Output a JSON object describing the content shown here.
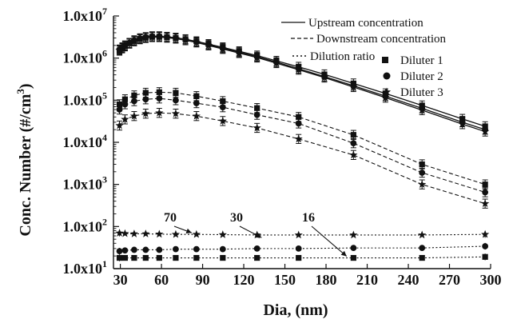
{
  "chart_data": {
    "type": "line",
    "xlabel": "Dia, (nm)",
    "ylabel": "Conc. Number (#/cm3)",
    "ylabel_base": "Conc. Number (#/cm",
    "ylabel_sup": "3",
    "ylabel_tail": ")",
    "x_ticks": [
      30,
      60,
      90,
      120,
      150,
      180,
      210,
      240,
      270,
      300
    ],
    "y_ticks": [
      10,
      100,
      1000,
      10000,
      100000,
      1000000,
      10000000
    ],
    "y_tick_labels": [
      "1.0x10",
      "1.0x10",
      "1.0x10",
      "1.0x10",
      "1.0x10",
      "1.0x10",
      "1.0x10"
    ],
    "y_tick_exps": [
      "1",
      "2",
      "3",
      "4",
      "5",
      "6",
      "7"
    ],
    "xlim": [
      25,
      300
    ],
    "ylim": [
      10,
      10000000
    ],
    "y_scale": "log",
    "grid": false,
    "legend_position": "top-right",
    "legend_lines": [
      {
        "label": "Upstream concentration",
        "style": "solid"
      },
      {
        "label": "Downstream concentration",
        "style": "dashed"
      },
      {
        "label": "Dilution ratio",
        "style": "dotted"
      }
    ],
    "legend_markers": [
      {
        "label": "Diluter 1",
        "marker": "square"
      },
      {
        "label": "Diluter 2",
        "marker": "circle"
      },
      {
        "label": "Diluter 3",
        "marker": "star"
      }
    ],
    "annotations": [
      {
        "text": "70",
        "x": 85,
        "y": 140,
        "arrow_to": [
          82,
          65
        ]
      },
      {
        "text": "30",
        "x": 130,
        "y": 140,
        "arrow_to": [
          133,
          50
        ]
      },
      {
        "text": "16",
        "x": 160,
        "y": 140,
        "arrow_to": [
          195,
          18
        ]
      }
    ],
    "series": [
      {
        "group": "upstream",
        "diluter": "Diluter 1",
        "style": "solid",
        "marker": "square",
        "x": [
          29.4,
          31.4,
          33.4,
          36.6,
          40.1,
          44.3,
          48.5,
          53.2,
          58.4,
          64.0,
          70.4,
          77.5,
          85.5,
          94.3,
          104.7,
          116.6,
          129.7,
          143.8,
          160.0,
          178.8,
          200.0,
          223.3,
          250.0,
          279.4,
          296.0
        ],
        "y": [
          1500000,
          1700000,
          1900000,
          2250000,
          2550000,
          2850000,
          3050000,
          3200000,
          3200000,
          3150000,
          3000000,
          2800000,
          2500000,
          2150000,
          1800000,
          1450000,
          1150000,
          860000,
          620000,
          410000,
          250000,
          145000,
          75000,
          36000,
          24000
        ]
      },
      {
        "group": "upstream",
        "diluter": "Diluter 2",
        "style": "solid",
        "marker": "circle",
        "x": [
          29.4,
          31.4,
          33.4,
          36.6,
          40.1,
          44.3,
          48.5,
          53.2,
          58.4,
          64.0,
          70.4,
          77.5,
          85.5,
          94.3,
          104.7,
          116.6,
          129.7,
          143.8,
          160.0,
          178.8,
          200.0,
          223.3,
          250.0,
          279.4,
          296.0
        ],
        "y": [
          1600000,
          1800000,
          2000000,
          2300000,
          2650000,
          2950000,
          3150000,
          3300000,
          3300000,
          3200000,
          3050000,
          2800000,
          2450000,
          2100000,
          1720000,
          1380000,
          1080000,
          800000,
          560000,
          365000,
          220000,
          125000,
          64000,
          30000,
          20000
        ]
      },
      {
        "group": "upstream",
        "diluter": "Diluter 3",
        "style": "solid",
        "marker": "star",
        "x": [
          29.4,
          31.4,
          33.4,
          36.6,
          40.1,
          44.3,
          48.5,
          53.2,
          58.4,
          64.0,
          70.4,
          77.5,
          85.5,
          94.3,
          104.7,
          116.6,
          129.7,
          143.8,
          160.0,
          178.8,
          200.0,
          223.3,
          250.0,
          279.4,
          296.0
        ],
        "y": [
          1550000,
          1750000,
          1950000,
          2200000,
          2500000,
          2800000,
          3000000,
          3150000,
          3150000,
          3050000,
          2900000,
          2650000,
          2350000,
          2000000,
          1650000,
          1320000,
          1030000,
          760000,
          530000,
          345000,
          205000,
          115000,
          58000,
          27000,
          18000
        ]
      },
      {
        "group": "downstream",
        "diluter": "Diluter 1",
        "style": "dashed",
        "marker": "square",
        "x": [
          29.4,
          33.4,
          40.1,
          48.5,
          58.4,
          70.4,
          85.5,
          104.7,
          129.7,
          160.0,
          200.0,
          250.0,
          296.0
        ],
        "y": [
          80000,
          105000,
          130000,
          150000,
          155000,
          150000,
          125000,
          95000,
          65000,
          40000,
          15000,
          3000,
          1000
        ]
      },
      {
        "group": "downstream",
        "diluter": "Diluter 2",
        "style": "dashed",
        "marker": "circle",
        "x": [
          29.4,
          33.4,
          40.1,
          48.5,
          58.4,
          70.4,
          85.5,
          104.7,
          129.7,
          160.0,
          200.0,
          250.0,
          296.0
        ],
        "y": [
          60000,
          80000,
          95000,
          105000,
          110000,
          100000,
          85000,
          68000,
          45000,
          28000,
          9500,
          1900,
          650
        ]
      },
      {
        "group": "downstream",
        "diluter": "Diluter 3",
        "style": "dashed",
        "marker": "star",
        "x": [
          29.4,
          33.4,
          40.1,
          48.5,
          58.4,
          70.4,
          85.5,
          104.7,
          129.7,
          160.0,
          200.0,
          250.0,
          296.0
        ],
        "y": [
          25000,
          35000,
          42000,
          48000,
          50000,
          48000,
          42000,
          32000,
          22000,
          12000,
          5000,
          1000,
          350
        ]
      },
      {
        "group": "dilution",
        "diluter": "Diluter 1",
        "style": "dotted",
        "marker": "square",
        "x": [
          29.4,
          33.4,
          40.1,
          48.5,
          58.4,
          70.4,
          85.5,
          104.7,
          129.7,
          160.0,
          200.0,
          250.0,
          296.0
        ],
        "y": [
          18,
          18,
          18,
          18,
          18,
          18,
          18,
          18,
          18,
          18,
          18,
          18,
          19
        ]
      },
      {
        "group": "dilution",
        "diluter": "Diluter 2",
        "style": "dotted",
        "marker": "circle",
        "x": [
          29.4,
          33.4,
          40.1,
          48.5,
          58.4,
          70.4,
          85.5,
          104.7,
          129.7,
          160.0,
          200.0,
          250.0,
          296.0
        ],
        "y": [
          26,
          27,
          28,
          28,
          28,
          29,
          29,
          29,
          30,
          30,
          31,
          31,
          34
        ]
      },
      {
        "group": "dilution",
        "diluter": "Diluter 3",
        "style": "dotted",
        "marker": "star",
        "x": [
          29.4,
          33.4,
          40.1,
          48.5,
          58.4,
          70.4,
          85.5,
          104.7,
          129.7,
          160.0,
          200.0,
          250.0,
          296.0
        ],
        "y": [
          70,
          68,
          67,
          67,
          66,
          65,
          65,
          64,
          63,
          63,
          63,
          63,
          65
        ]
      }
    ]
  }
}
